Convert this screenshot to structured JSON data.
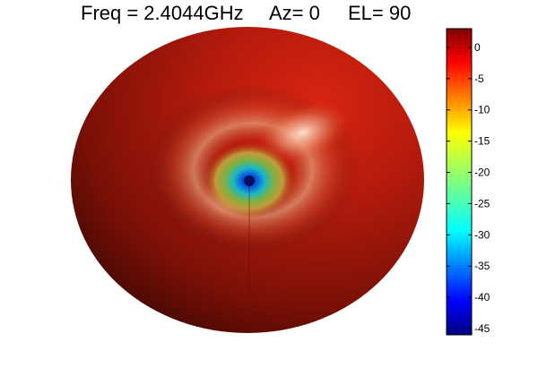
{
  "chart_data": {
    "type": "surface",
    "description_of_view": "3D radiation pattern viewed from top",
    "title_parts": [
      "Freq = 2.4044GHz",
      "Az= 0",
      "EL= 90"
    ],
    "colormap": "jet",
    "colorbar": {
      "range": [
        -46,
        3
      ],
      "ticks": [
        0,
        -5,
        -10,
        -15,
        -20,
        -25,
        -30,
        -35,
        -40,
        -45
      ],
      "tick_labels": [
        "0",
        "-5",
        "-10",
        "-15",
        "-20",
        "-25",
        "-30",
        "-35",
        "-40",
        "-45"
      ]
    },
    "pattern": {
      "max_gain_db": 3,
      "null_gain_db": -46
    }
  }
}
